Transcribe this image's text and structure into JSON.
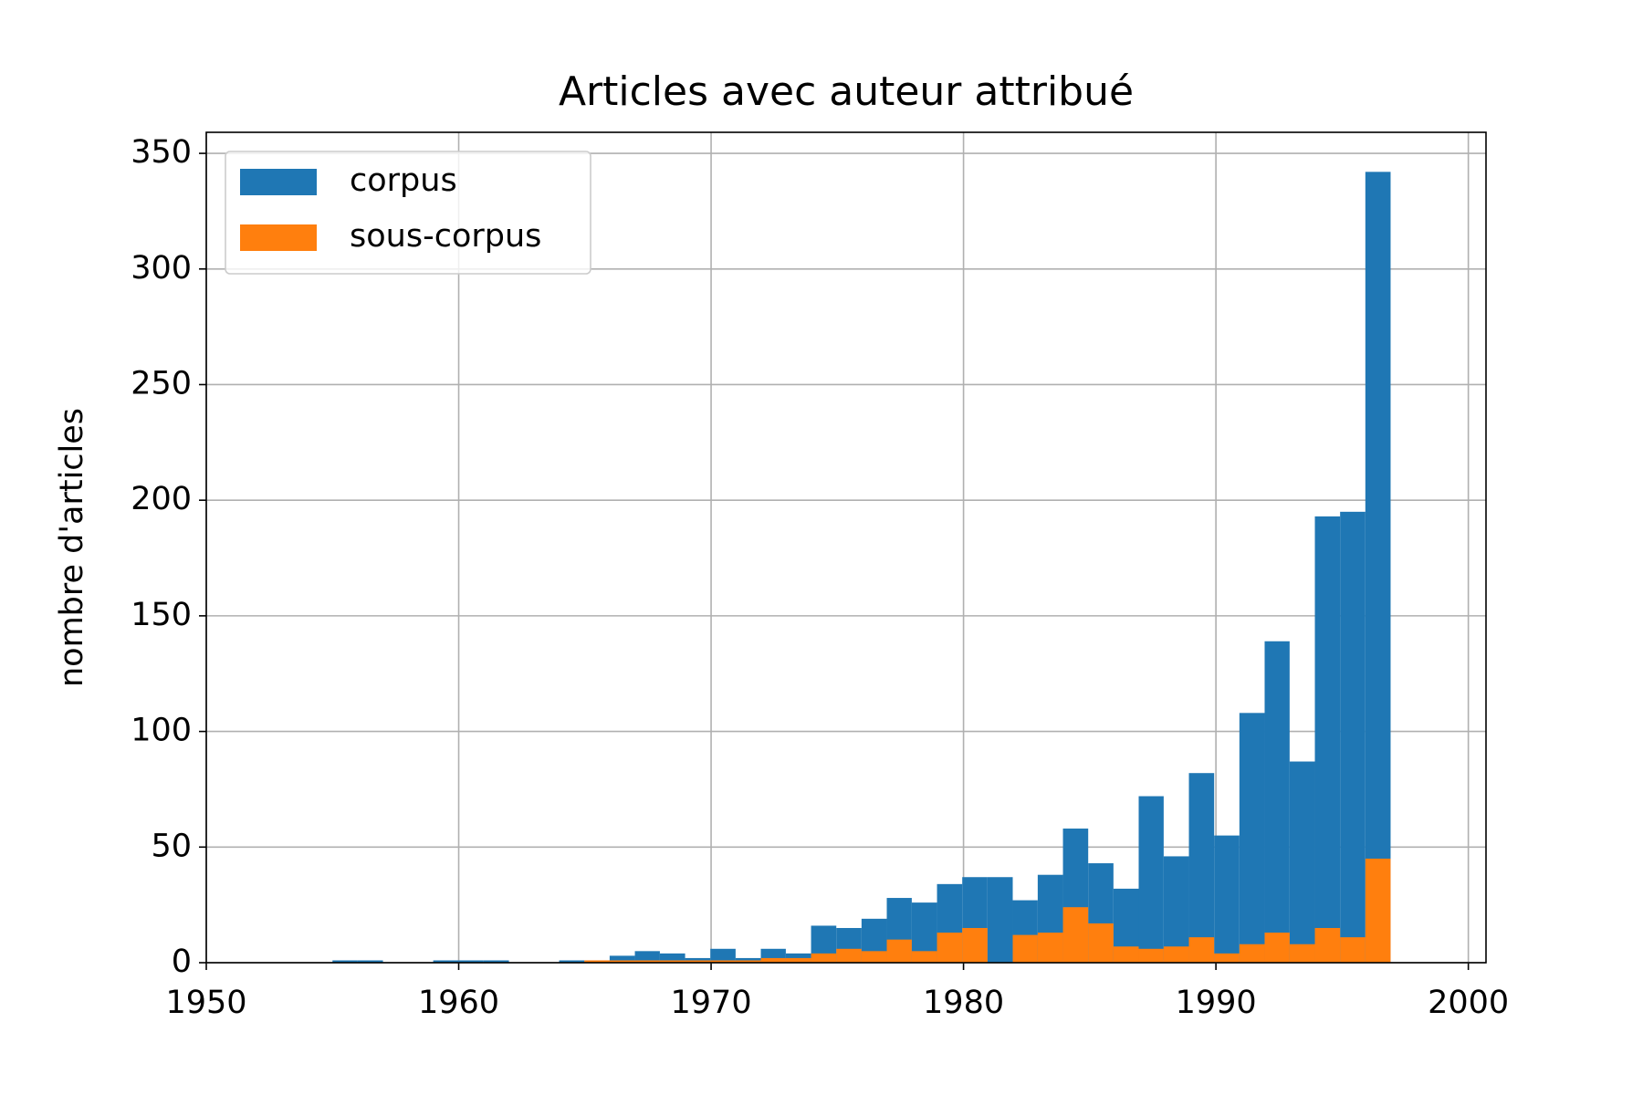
{
  "chart_data": {
    "type": "histogram",
    "title": "Articles avec auteur attribué",
    "ylabel": "nombre d'articles",
    "bins": [
      1955.0,
      1956.0,
      1957.0,
      1957.99,
      1958.99,
      1959.99,
      1960.99,
      1961.99,
      1962.98,
      1963.98,
      1964.98,
      1965.98,
      1966.98,
      1967.97,
      1968.97,
      1969.97,
      1970.97,
      1971.97,
      1972.96,
      1973.96,
      1974.96,
      1975.96,
      1976.96,
      1977.95,
      1978.95,
      1979.95,
      1980.95,
      1981.95,
      1982.94,
      1983.94,
      1984.94,
      1985.94,
      1986.94,
      1987.93,
      1988.93,
      1989.93,
      1990.93,
      1991.93,
      1992.92,
      1993.92,
      1994.92,
      1995.92,
      1996.92
    ],
    "series": [
      {
        "name": "corpus",
        "color": "#1f77b4",
        "values": [
          1,
          1,
          0,
          0,
          1,
          1,
          1,
          0,
          0,
          1,
          1,
          3,
          5,
          4,
          2,
          6,
          2,
          6,
          4,
          16,
          15,
          19,
          28,
          26,
          34,
          37,
          37,
          27,
          38,
          58,
          43,
          32,
          72,
          46,
          82,
          55,
          108,
          139,
          87,
          193,
          195,
          342
        ]
      },
      {
        "name": "sous-corpus",
        "color": "#ff7f0e",
        "values": [
          0,
          0,
          0,
          0,
          0,
          0,
          0,
          0,
          0,
          0,
          1,
          1,
          1,
          1,
          1,
          1,
          1,
          2,
          2,
          4,
          6,
          5,
          10,
          5,
          13,
          15,
          0,
          12,
          13,
          24,
          17,
          7,
          6,
          7,
          11,
          4,
          8,
          13,
          8,
          15,
          11,
          45
        ]
      }
    ],
    "xlim": [
      1950,
      2000.7
    ],
    "xticks": [
      1950,
      1960,
      1970,
      1980,
      1990,
      2000
    ],
    "ylim": [
      0,
      359.1
    ],
    "yticks": [
      0,
      50,
      100,
      150,
      200,
      250,
      300,
      350
    ],
    "grid": true,
    "legend": "upper left"
  }
}
